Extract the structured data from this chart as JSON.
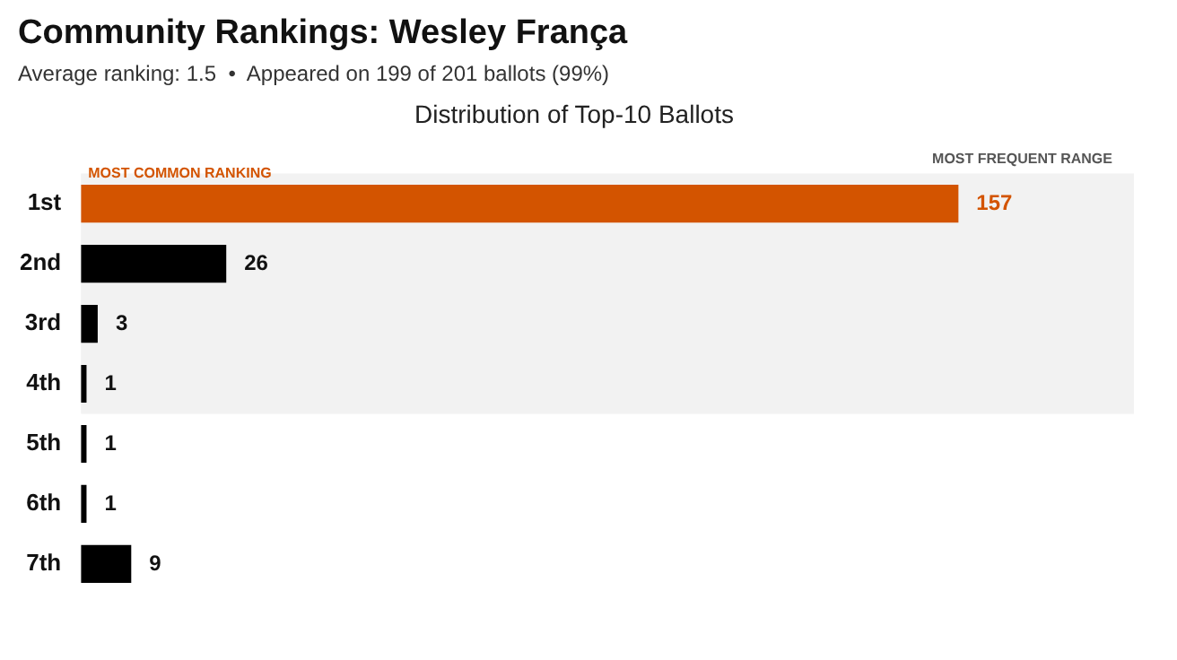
{
  "chart_data": {
    "type": "bar",
    "orientation": "horizontal",
    "title": "Community Rankings: Wesley França",
    "subtitle": "Average ranking: 1.5  •  Appeared on 199 of 201 ballots (99%)",
    "annotations": [
      "Distribution of Top-10 Ballots",
      {
        "text": "MOST COMMON RANKING",
        "x": 0,
        "y": "1st"
      }
    ],
    "categories": [
      "1st",
      "2nd",
      "3rd",
      "4th",
      "5th",
      "6th",
      "7th"
    ],
    "values": [
      157,
      26,
      3,
      1,
      1,
      1,
      9
    ],
    "colors": [
      "#d35400",
      "#000000",
      "#000000",
      "#000000",
      "#000000",
      "#000000",
      "#000000"
    ],
    "bands": [
      {
        "axis": "y",
        "from": "1st",
        "to": "4th",
        "label": "MOST FREQUENT RANGE",
        "color": "#f2f2f2"
      }
    ],
    "data_labels": true,
    "tick_labels": "y",
    "legend": false
  }
}
